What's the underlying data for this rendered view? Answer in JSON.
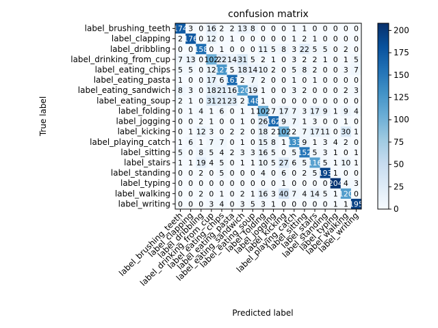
{
  "chart_data": {
    "type": "heatmap",
    "title": "confusion matrix",
    "xlabel": "Predicted label",
    "ylabel": "True label",
    "labels": [
      "label_brushing_teeth",
      "label_clapping",
      "label_dribbling",
      "label_drinking_from_cup",
      "label_eating_chips",
      "label_eating_pasta",
      "label_eating_sandwich",
      "label_eating_soup",
      "label_folding",
      "label_jogging",
      "label_kicking",
      "label_playing_catch",
      "label_sitting",
      "label_stairs",
      "label_standing",
      "label_typing",
      "label_walking",
      "label_writing"
    ],
    "matrix": [
      [
        174,
        3,
        0,
        16,
        2,
        2,
        13,
        8,
        0,
        0,
        0,
        1,
        1,
        0,
        0,
        0,
        0,
        0
      ],
      [
        2,
        176,
        0,
        12,
        0,
        1,
        0,
        0,
        0,
        0,
        0,
        1,
        2,
        1,
        0,
        0,
        0,
        0
      ],
      [
        0,
        0,
        158,
        0,
        1,
        0,
        0,
        0,
        11,
        5,
        8,
        3,
        22,
        5,
        5,
        0,
        2,
        0
      ],
      [
        7,
        13,
        0,
        102,
        22,
        14,
        31,
        5,
        2,
        1,
        0,
        3,
        2,
        2,
        1,
        0,
        1,
        5
      ],
      [
        5,
        5,
        0,
        12,
        127,
        5,
        18,
        14,
        10,
        2,
        0,
        5,
        8,
        2,
        0,
        0,
        3,
        7
      ],
      [
        1,
        0,
        0,
        17,
        6,
        161,
        2,
        7,
        2,
        0,
        0,
        1,
        0,
        1,
        0,
        0,
        0,
        0
      ],
      [
        8,
        3,
        0,
        18,
        21,
        16,
        120,
        19,
        1,
        0,
        0,
        3,
        2,
        0,
        0,
        0,
        2,
        3
      ],
      [
        2,
        1,
        0,
        31,
        21,
        23,
        2,
        148,
        1,
        0,
        0,
        0,
        0,
        0,
        0,
        0,
        0,
        0
      ],
      [
        0,
        1,
        4,
        1,
        6,
        0,
        1,
        1,
        102,
        7,
        17,
        7,
        3,
        17,
        9,
        1,
        9,
        4
      ],
      [
        0,
        0,
        2,
        1,
        0,
        0,
        1,
        0,
        26,
        162,
        9,
        7,
        1,
        3,
        0,
        0,
        1,
        0
      ],
      [
        0,
        1,
        12,
        3,
        0,
        2,
        2,
        0,
        18,
        2,
        102,
        2,
        7,
        17,
        11,
        0,
        30,
        1
      ],
      [
        1,
        6,
        1,
        7,
        7,
        0,
        1,
        0,
        15,
        8,
        1,
        133,
        9,
        1,
        3,
        4,
        2,
        0
      ],
      [
        5,
        0,
        8,
        5,
        4,
        2,
        3,
        3,
        16,
        5,
        0,
        5,
        152,
        5,
        3,
        1,
        0,
        1
      ],
      [
        1,
        1,
        19,
        4,
        5,
        0,
        1,
        1,
        10,
        5,
        27,
        6,
        5,
        116,
        5,
        1,
        10,
        1
      ],
      [
        0,
        0,
        2,
        0,
        5,
        0,
        0,
        0,
        4,
        0,
        6,
        0,
        2,
        5,
        193,
        1,
        0,
        0
      ],
      [
        0,
        0,
        0,
        0,
        0,
        0,
        0,
        0,
        0,
        0,
        1,
        0,
        0,
        0,
        0,
        204,
        4,
        3
      ],
      [
        0,
        0,
        2,
        0,
        1,
        0,
        2,
        1,
        16,
        3,
        40,
        7,
        4,
        14,
        5,
        1,
        120,
        0
      ],
      [
        0,
        0,
        0,
        3,
        4,
        0,
        3,
        5,
        3,
        1,
        0,
        0,
        0,
        0,
        0,
        1,
        1,
        195
      ]
    ],
    "colorbar": {
      "colormap": "Blues",
      "vmin": 0,
      "vmax": 208,
      "ticks": [
        0,
        25,
        50,
        75,
        100,
        125,
        150,
        175,
        200
      ]
    },
    "grid": false
  }
}
